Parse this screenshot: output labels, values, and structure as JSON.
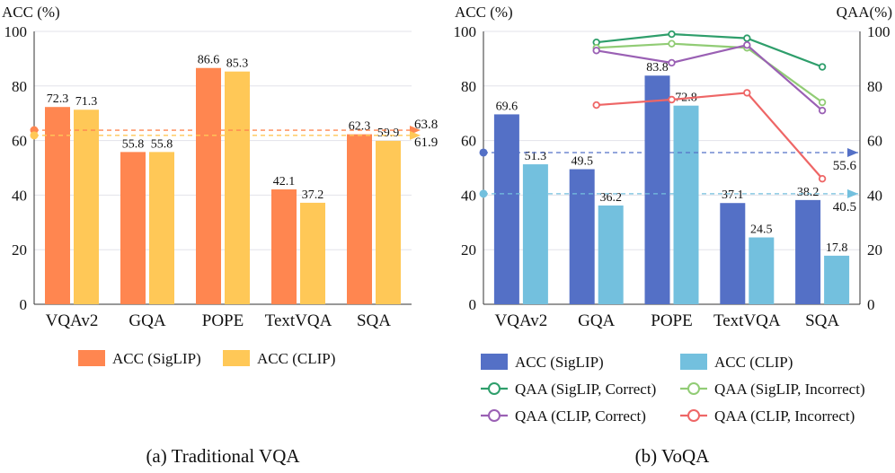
{
  "colors": {
    "siglip_a": "#FF8650",
    "clip_a": "#FFC857",
    "siglip_b": "#5470C6",
    "clip_b": "#73C0DE",
    "qaa_siglip_correct": "#2E9E6B",
    "qaa_siglip_incorrect": "#91CC75",
    "qaa_clip_correct": "#9A60B4",
    "qaa_clip_incorrect": "#EE6666"
  },
  "chart_data": [
    {
      "type": "bar",
      "title": "(a) Traditional VQA",
      "ylabel": "ACC (%)",
      "ylim": [
        0,
        100
      ],
      "yticks": [
        "0",
        "20",
        "40",
        "60",
        "80",
        "100"
      ],
      "categories": [
        "VQAv2",
        "GQA",
        "POPE",
        "TextVQA",
        "SQA"
      ],
      "series": [
        {
          "name": "ACC (SigLIP)",
          "values": [
            72.3,
            55.8,
            86.6,
            42.1,
            62.3
          ],
          "labels": [
            "72.3",
            "55.8",
            "86.6",
            "42.1",
            "62.3"
          ]
        },
        {
          "name": "ACC (CLIP)",
          "values": [
            71.3,
            55.8,
            85.3,
            37.2,
            59.9
          ],
          "labels": [
            "71.3",
            "55.8",
            "85.3",
            "37.2",
            "59.9"
          ]
        }
      ],
      "reference_lines": [
        {
          "series": "ACC (SigLIP)",
          "value": 63.8,
          "label": "63.8"
        },
        {
          "series": "ACC (CLIP)",
          "value": 61.9,
          "label": "61.9"
        }
      ],
      "legend": [
        "ACC (SigLIP)",
        "ACC (CLIP)"
      ]
    },
    {
      "type": "bar",
      "title": "(b) VoQA",
      "ylabel": "ACC (%)",
      "y2label": "QAA(%)",
      "ylim": [
        0,
        100
      ],
      "y2lim": [
        0,
        100
      ],
      "yticks": [
        "0",
        "20",
        "40",
        "60",
        "80",
        "100"
      ],
      "categories": [
        "VQAv2",
        "GQA",
        "POPE",
        "TextVQA",
        "SQA"
      ],
      "series": [
        {
          "name": "ACC (SigLIP)",
          "values": [
            69.6,
            49.5,
            83.8,
            37.1,
            38.2
          ],
          "labels": [
            "69.6",
            "49.5",
            "83.8",
            "37.1",
            "38.2"
          ]
        },
        {
          "name": "ACC (CLIP)",
          "values": [
            51.3,
            36.2,
            72.8,
            24.5,
            17.8
          ],
          "labels": [
            "51.3",
            "36.2",
            "72.8",
            "24.5",
            "17.8"
          ]
        }
      ],
      "line_series": [
        {
          "name": "QAA (SigLIP, Correct)",
          "values": [
            96,
            99,
            97.5,
            87
          ],
          "categories": [
            "GQA",
            "POPE",
            "TextVQA",
            "SQA"
          ]
        },
        {
          "name": "QAA (SigLIP, Incorrect)",
          "values": [
            94,
            95.5,
            94,
            74
          ],
          "categories": [
            "GQA",
            "POPE",
            "TextVQA",
            "SQA"
          ]
        },
        {
          "name": "QAA (CLIP, Correct)",
          "values": [
            93,
            88.5,
            95,
            71
          ],
          "categories": [
            "GQA",
            "POPE",
            "TextVQA",
            "SQA"
          ]
        },
        {
          "name": "QAA (CLIP, Incorrect)",
          "values": [
            73,
            75,
            77.5,
            46
          ],
          "categories": [
            "GQA",
            "POPE",
            "TextVQA",
            "SQA"
          ]
        }
      ],
      "reference_lines": [
        {
          "series": "ACC (SigLIP)",
          "value": 55.6,
          "label": "55.6"
        },
        {
          "series": "ACC (CLIP)",
          "value": 40.5,
          "label": "40.5"
        }
      ],
      "legend": [
        "ACC (SigLIP)",
        "ACC (CLIP)",
        "QAA (SigLIP, Correct)",
        "QAA (SigLIP, Incorrect)",
        "QAA (CLIP, Correct)",
        "QAA (CLIP, Incorrect)"
      ]
    }
  ]
}
